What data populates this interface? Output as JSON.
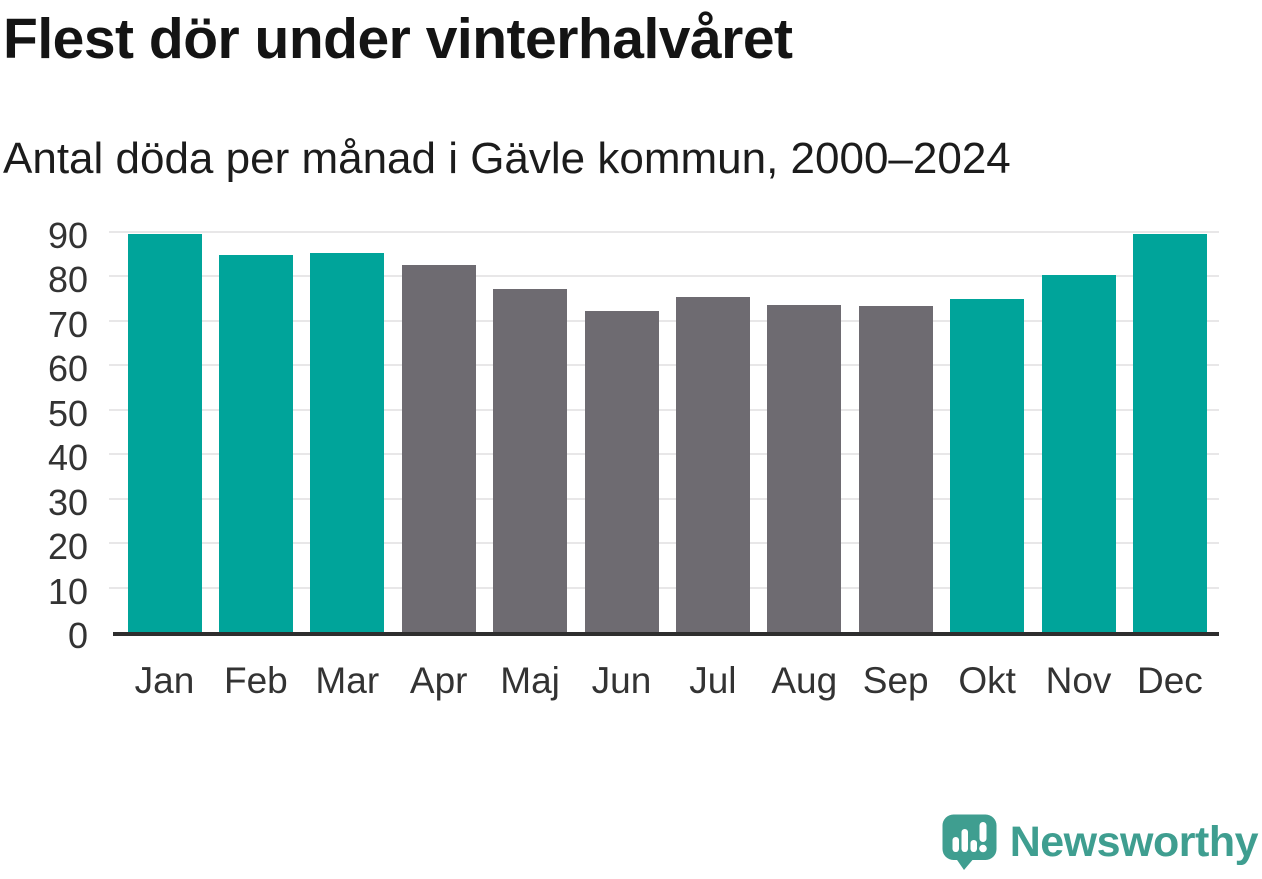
{
  "chart_data": {
    "type": "bar",
    "title": "Flest dör under vinterhalvåret",
    "subtitle": "Antal döda per månad i Gävle kommun, 2000–2024",
    "categories": [
      "Jan",
      "Feb",
      "Mar",
      "Apr",
      "Maj",
      "Jun",
      "Jul",
      "Aug",
      "Sep",
      "Okt",
      "Nov",
      "Dec"
    ],
    "values": [
      89.5,
      84.9,
      85.2,
      82.5,
      77.2,
      72.2,
      75.4,
      73.5,
      73.3,
      74.9,
      80.3,
      89.5
    ],
    "bar_colors": [
      "teal",
      "teal",
      "teal",
      "gray",
      "gray",
      "gray",
      "gray",
      "gray",
      "gray",
      "teal",
      "teal",
      "teal"
    ],
    "colors": {
      "teal": "#00a49a",
      "gray": "#6e6b71"
    },
    "xlabel": "",
    "ylabel": "",
    "ylim": [
      0,
      90
    ],
    "yticks": [
      0,
      10,
      20,
      30,
      40,
      50,
      60,
      70,
      80,
      90
    ],
    "grid": true,
    "legend": false
  },
  "branding": {
    "name": "Newsworthy",
    "color": "#3f9e90"
  }
}
